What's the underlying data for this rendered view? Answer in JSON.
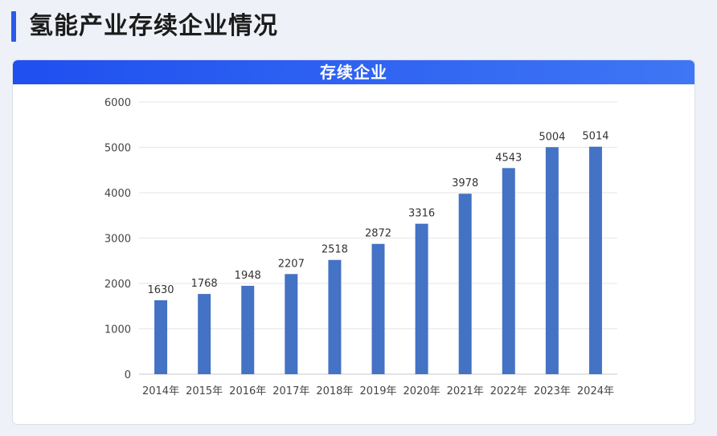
{
  "page": {
    "title": "氢能产业存续企业情况"
  },
  "card": {
    "header": "存续企业"
  },
  "colors": {
    "accent": "#2a5bea",
    "bar": "#4472c4",
    "grid": "#e6e6e6"
  },
  "chart_data": {
    "type": "bar",
    "title": "存续企业",
    "categories": [
      "2014年",
      "2015年",
      "2016年",
      "2017年",
      "2018年",
      "2019年",
      "2020年",
      "2021年",
      "2022年",
      "2023年",
      "2024年"
    ],
    "values": [
      1630,
      1768,
      1948,
      2207,
      2518,
      2872,
      3316,
      3978,
      4543,
      5004,
      5014
    ],
    "ylim": [
      0,
      6000
    ],
    "yticks": [
      0,
      1000,
      2000,
      3000,
      4000,
      5000,
      6000
    ],
    "grid": true,
    "xlabel": "",
    "ylabel": ""
  }
}
